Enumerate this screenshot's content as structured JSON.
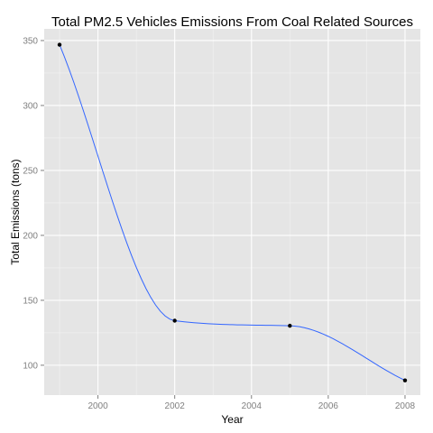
{
  "chart_data": {
    "type": "line",
    "title": "Total PM2.5 Vehicles Emissions From Coal Related Sources",
    "xlabel": "Year",
    "ylabel": "Total Emissions (tons)",
    "x": [
      1999,
      2002,
      2005,
      2008
    ],
    "series": [
      {
        "values": [
          346.8,
          134.3,
          130.4,
          88.3
        ]
      }
    ],
    "xlim": [
      1998.6,
      2008.4
    ],
    "ylim": [
      77,
      359
    ],
    "xticks": [
      2000,
      2002,
      2004,
      2006,
      2008
    ],
    "xtick_labels": [
      "2000",
      "2002",
      "2004",
      "2006",
      "2008"
    ],
    "yticks": [
      100,
      150,
      200,
      250,
      300,
      350
    ],
    "ytick_labels": [
      "100",
      "150",
      "200",
      "250",
      "300",
      "350"
    ],
    "grid": true,
    "smoothed": true,
    "colors": {
      "panel": "#e5e5e5",
      "grid_major": "#ffffff",
      "grid_minor": "#f2f2f2",
      "line": "#3366ff",
      "point": "#000000"
    }
  }
}
